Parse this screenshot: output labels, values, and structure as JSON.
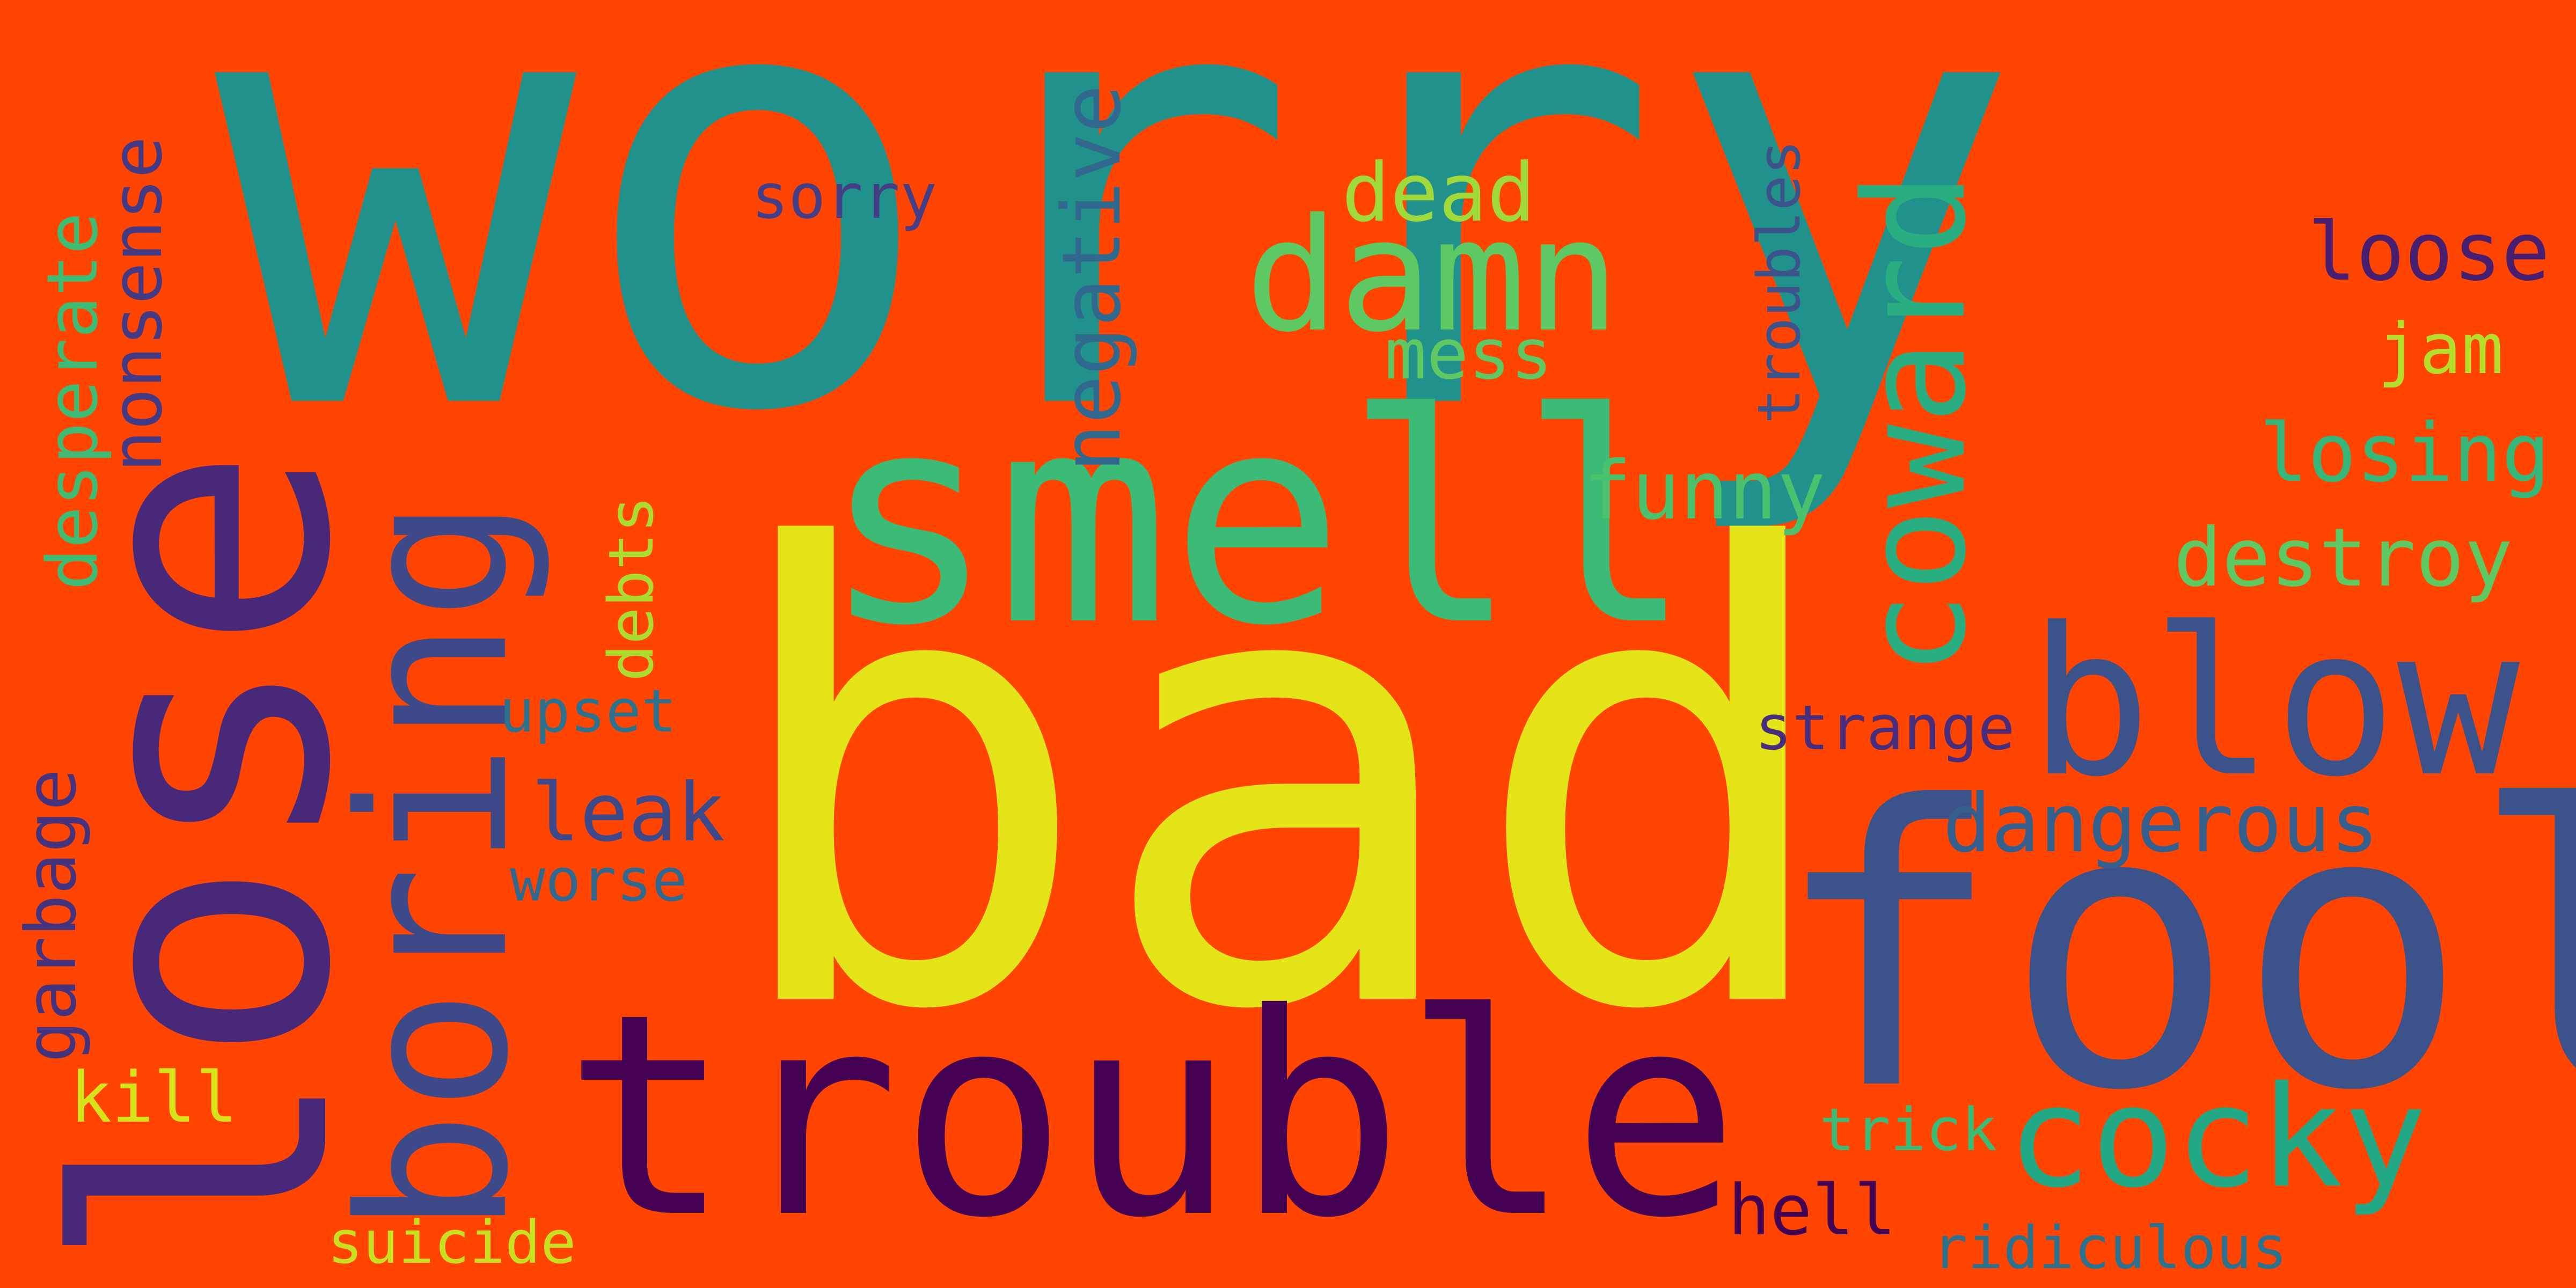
{
  "background": "#ff4500",
  "words": [
    {
      "text": "worry",
      "color": "#21918c"
    },
    {
      "text": "bad",
      "color": "#e5e419"
    },
    {
      "text": "lose",
      "color": "#482878"
    },
    {
      "text": "smell",
      "color": "#3bbb75"
    },
    {
      "text": "fool",
      "color": "#3b528b"
    },
    {
      "text": "trouble",
      "color": "#440154"
    },
    {
      "text": "boring",
      "color": "#3e4989"
    },
    {
      "text": "blow",
      "color": "#3b528b"
    },
    {
      "text": "damn",
      "color": "#5ec962"
    },
    {
      "text": "coward",
      "color": "#28ae80"
    },
    {
      "text": "cocky",
      "color": "#22a884"
    },
    {
      "text": "negative",
      "color": "#31688e"
    },
    {
      "text": "dead",
      "color": "#9fda3a"
    },
    {
      "text": "loose",
      "color": "#481f70"
    },
    {
      "text": "dangerous",
      "color": "#355f8d"
    },
    {
      "text": "funny",
      "color": "#4ac16d"
    },
    {
      "text": "destroy",
      "color": "#5ec962"
    },
    {
      "text": "losing",
      "color": "#35b779"
    },
    {
      "text": "nonsense",
      "color": "#443983"
    },
    {
      "text": "desperate",
      "color": "#3fbc73"
    },
    {
      "text": "garbage",
      "color": "#46337e"
    },
    {
      "text": "leak",
      "color": "#3e4989"
    },
    {
      "text": "mess",
      "color": "#5ec962"
    },
    {
      "text": "sorry",
      "color": "#433e85"
    },
    {
      "text": "jam",
      "color": "#b5de2b"
    },
    {
      "text": "troubles",
      "color": "#3b528b"
    },
    {
      "text": "debts",
      "color": "#addc30"
    },
    {
      "text": "strange",
      "color": "#472d7b"
    },
    {
      "text": "hell",
      "color": "#440154"
    },
    {
      "text": "kill",
      "color": "#d8e219"
    },
    {
      "text": "upset",
      "color": "#2c728e"
    },
    {
      "text": "worse",
      "color": "#31688e"
    },
    {
      "text": "trick",
      "color": "#3bbb75"
    },
    {
      "text": "suicide",
      "color": "#c8e020"
    },
    {
      "text": "ridiculous",
      "color": "#2c728e"
    }
  ]
}
